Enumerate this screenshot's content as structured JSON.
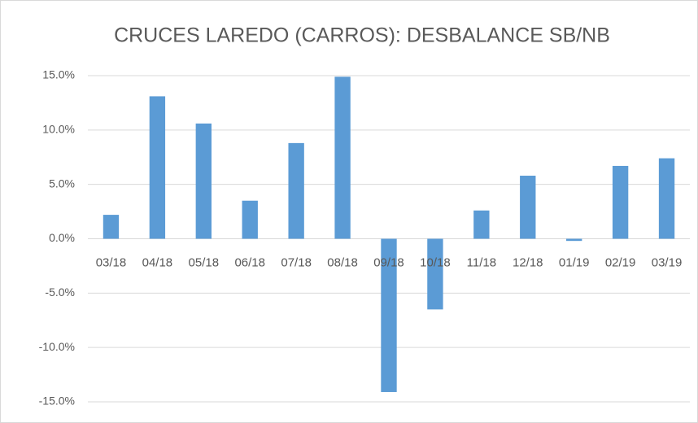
{
  "chart_data": {
    "type": "bar",
    "title": "CRUCES LAREDO (CARROS): DESBALANCE SB/NB",
    "categories": [
      "03/18",
      "04/18",
      "05/18",
      "06/18",
      "07/18",
      "08/18",
      "09/18",
      "10/18",
      "11/18",
      "12/18",
      "01/19",
      "02/19",
      "03/19"
    ],
    "values": [
      2.2,
      13.1,
      10.6,
      3.5,
      8.8,
      14.9,
      -14.1,
      -6.5,
      2.6,
      5.8,
      -0.2,
      6.7,
      7.4
    ],
    "color": "#5b9bd5",
    "ylim": [
      -15,
      15
    ],
    "yticks": [
      {
        "value": -15,
        "label": "-15.0%"
      },
      {
        "value": -10,
        "label": "-10.0%"
      },
      {
        "value": -5,
        "label": "-5.0%"
      },
      {
        "value": 0,
        "label": "0.0%"
      },
      {
        "value": 5,
        "label": "5.0%"
      },
      {
        "value": 10,
        "label": "10.0%"
      },
      {
        "value": 15,
        "label": "15.0%"
      }
    ],
    "grid": true
  }
}
